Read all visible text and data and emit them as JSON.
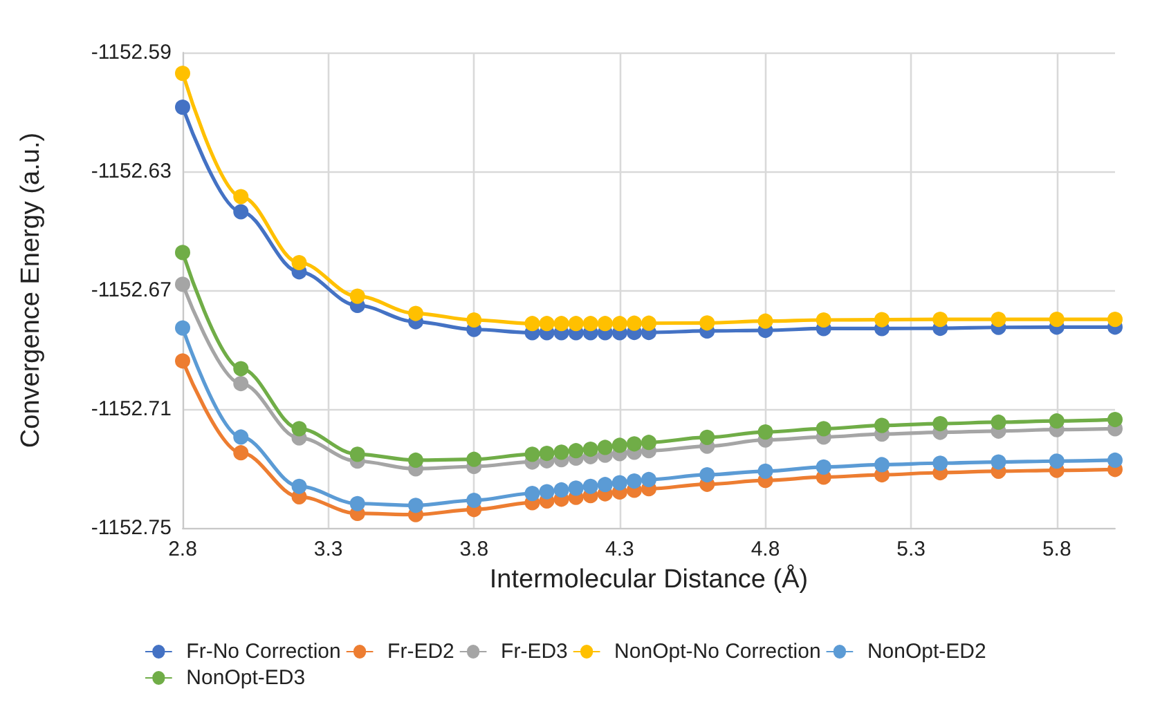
{
  "chart_data": {
    "type": "line",
    "xlabel": "Intermolecular Distance (Å)",
    "ylabel": "Convergence Energy (a.u.)",
    "x": [
      2.8,
      3.0,
      3.2,
      3.4,
      3.6,
      3.8,
      4.0,
      4.05,
      4.1,
      4.15,
      4.2,
      4.25,
      4.3,
      4.35,
      4.4,
      4.6,
      4.8,
      5.0,
      5.2,
      5.4,
      5.6,
      5.8,
      6.0
    ],
    "xlim": [
      2.8,
      6.0
    ],
    "xticks": [
      2.8,
      3.3,
      3.8,
      4.3,
      4.8,
      5.3,
      5.8
    ],
    "ylim": [
      -1152.75,
      -1152.59
    ],
    "yticks": [
      -1152.75,
      -1152.71,
      -1152.67,
      -1152.63,
      -1152.59
    ],
    "grid": true,
    "legend": "bottom",
    "marker": "circle",
    "line_style": "solid",
    "series": [
      {
        "name": "Fr-No Correction",
        "color": "#4472c4",
        "values": [
          -1152.6084,
          -1152.6436,
          -1152.6638,
          -1152.6751,
          -1152.6806,
          -1152.6832,
          -1152.6843,
          -1152.6843,
          -1152.6843,
          -1152.6843,
          -1152.6843,
          -1152.6843,
          -1152.6843,
          -1152.6842,
          -1152.6842,
          -1152.6837,
          -1152.6835,
          -1152.6829,
          -1152.6829,
          -1152.6828,
          -1152.6825,
          -1152.6824,
          -1152.6824
        ]
      },
      {
        "name": "Fr-ED2",
        "color": "#ed7d31",
        "values": [
          -1152.6938,
          -1152.7247,
          -1152.7395,
          -1152.7451,
          -1152.7455,
          -1152.7438,
          -1152.7415,
          -1152.7409,
          -1152.7403,
          -1152.7397,
          -1152.7391,
          -1152.7385,
          -1152.7379,
          -1152.7373,
          -1152.7368,
          -1152.7353,
          -1152.734,
          -1152.7329,
          -1152.7321,
          -1152.7314,
          -1152.7309,
          -1152.7306,
          -1152.7303
        ]
      },
      {
        "name": "Fr-ED3",
        "color": "#a5a5a5",
        "values": [
          -1152.668,
          -1152.7014,
          -1152.7197,
          -1152.7275,
          -1152.7301,
          -1152.7293,
          -1152.7278,
          -1152.7274,
          -1152.727,
          -1152.7265,
          -1152.726,
          -1152.7255,
          -1152.725,
          -1152.7245,
          -1152.724,
          -1152.7225,
          -1152.7204,
          -1152.7194,
          -1152.7184,
          -1152.7178,
          -1152.7174,
          -1152.7169,
          -1152.7166
        ]
      },
      {
        "name": "NonOpt-No Correction",
        "color": "#ffc000",
        "values": [
          -1152.597,
          -1152.6385,
          -1152.6607,
          -1152.672,
          -1152.6778,
          -1152.68,
          -1152.6812,
          -1152.6812,
          -1152.6812,
          -1152.6812,
          -1152.6812,
          -1152.6812,
          -1152.6812,
          -1152.6811,
          -1152.6811,
          -1152.681,
          -1152.6804,
          -1152.68,
          -1152.6799,
          -1152.6798,
          -1152.6798,
          -1152.6798,
          -1152.6798
        ]
      },
      {
        "name": "NonOpt-ED2",
        "color": "#5b9bd5",
        "values": [
          -1152.6827,
          -1152.7194,
          -1152.736,
          -1152.7418,
          -1152.7424,
          -1152.7407,
          -1152.7384,
          -1152.7378,
          -1152.7372,
          -1152.7366,
          -1152.736,
          -1152.7354,
          -1152.7348,
          -1152.7342,
          -1152.7337,
          -1152.7321,
          -1152.7309,
          -1152.7295,
          -1152.7287,
          -1152.7282,
          -1152.7278,
          -1152.7275,
          -1152.7272
        ]
      },
      {
        "name": "NonOpt-ED3",
        "color": "#70ad47",
        "values": [
          -1152.6573,
          -1152.6964,
          -1152.7166,
          -1152.7252,
          -1152.7272,
          -1152.7269,
          -1152.7252,
          -1152.7249,
          -1152.7245,
          -1152.724,
          -1152.7235,
          -1152.7229,
          -1152.7222,
          -1152.7217,
          -1152.7212,
          -1152.7195,
          -1152.7177,
          -1152.7166,
          -1152.7155,
          -1152.7149,
          -1152.7144,
          -1152.714,
          -1152.7135
        ]
      }
    ]
  }
}
